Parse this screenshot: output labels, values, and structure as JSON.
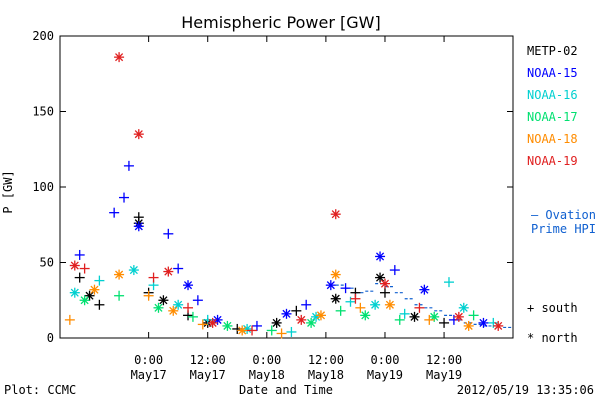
{
  "chart_data": {
    "type": "scatter",
    "title": "Hemispheric Power [GW]",
    "ylabel": "P [GW]",
    "xlabel": "Date and Time",
    "ylim": [
      0,
      200
    ],
    "yticks": [
      0,
      50,
      100,
      150,
      200
    ],
    "xlim_hours": [
      -18,
      74
    ],
    "xticks": [
      {
        "hours": 0,
        "time": "0:00",
        "date": "May17"
      },
      {
        "hours": 12,
        "time": "12:00",
        "date": "May17"
      },
      {
        "hours": 24,
        "time": "0:00",
        "date": "May18"
      },
      {
        "hours": 36,
        "time": "12:00",
        "date": "May18"
      },
      {
        "hours": 48,
        "time": "0:00",
        "date": "May19"
      },
      {
        "hours": 60,
        "time": "12:00",
        "date": "May19"
      }
    ],
    "marker_legend": [
      {
        "symbol": "+",
        "label": "south"
      },
      {
        "symbol": "*",
        "label": "north"
      }
    ],
    "series": [
      {
        "name": "METP-02",
        "color": "#000000",
        "points": [
          {
            "x": -14,
            "y": 40,
            "m": "+"
          },
          {
            "x": -12,
            "y": 28,
            "m": "*"
          },
          {
            "x": -10,
            "y": 22,
            "m": "+"
          },
          {
            "x": -2,
            "y": 80,
            "m": "+"
          },
          {
            "x": -2,
            "y": 76,
            "m": "*"
          },
          {
            "x": 0,
            "y": 30,
            "m": "+"
          },
          {
            "x": 3,
            "y": 25,
            "m": "*"
          },
          {
            "x": 8,
            "y": 15,
            "m": "+"
          },
          {
            "x": 12,
            "y": 10,
            "m": "*"
          },
          {
            "x": 18,
            "y": 6,
            "m": "+"
          },
          {
            "x": 26,
            "y": 10,
            "m": "*"
          },
          {
            "x": 30,
            "y": 18,
            "m": "+"
          },
          {
            "x": 38,
            "y": 26,
            "m": "*"
          },
          {
            "x": 42,
            "y": 30,
            "m": "+"
          },
          {
            "x": 47,
            "y": 40,
            "m": "*"
          },
          {
            "x": 48,
            "y": 30,
            "m": "+"
          },
          {
            "x": 54,
            "y": 14,
            "m": "*"
          },
          {
            "x": 60,
            "y": 10,
            "m": "+"
          }
        ]
      },
      {
        "name": "NOAA-15",
        "color": "#0000ff",
        "points": [
          {
            "x": -14,
            "y": 55,
            "m": "+"
          },
          {
            "x": -7,
            "y": 83,
            "m": "+"
          },
          {
            "x": -5,
            "y": 93,
            "m": "+"
          },
          {
            "x": -4,
            "y": 114,
            "m": "+"
          },
          {
            "x": -2,
            "y": 74,
            "m": "*"
          },
          {
            "x": 4,
            "y": 69,
            "m": "+"
          },
          {
            "x": 6,
            "y": 46,
            "m": "+"
          },
          {
            "x": 8,
            "y": 35,
            "m": "*"
          },
          {
            "x": 10,
            "y": 25,
            "m": "+"
          },
          {
            "x": 14,
            "y": 12,
            "m": "*"
          },
          {
            "x": 22,
            "y": 8,
            "m": "+"
          },
          {
            "x": 28,
            "y": 16,
            "m": "*"
          },
          {
            "x": 32,
            "y": 22,
            "m": "+"
          },
          {
            "x": 37,
            "y": 35,
            "m": "*"
          },
          {
            "x": 40,
            "y": 33,
            "m": "+"
          },
          {
            "x": 47,
            "y": 54,
            "m": "*"
          },
          {
            "x": 50,
            "y": 45,
            "m": "+"
          },
          {
            "x": 56,
            "y": 32,
            "m": "*"
          },
          {
            "x": 62,
            "y": 12,
            "m": "+"
          },
          {
            "x": 68,
            "y": 10,
            "m": "*"
          }
        ]
      },
      {
        "name": "NOAA-16",
        "color": "#00d0d0",
        "points": [
          {
            "x": -15,
            "y": 30,
            "m": "*"
          },
          {
            "x": -10,
            "y": 38,
            "m": "+"
          },
          {
            "x": -3,
            "y": 45,
            "m": "*"
          },
          {
            "x": 1,
            "y": 35,
            "m": "+"
          },
          {
            "x": 6,
            "y": 22,
            "m": "*"
          },
          {
            "x": 12,
            "y": 12,
            "m": "+"
          },
          {
            "x": 20,
            "y": 6,
            "m": "*"
          },
          {
            "x": 29,
            "y": 4,
            "m": "+"
          },
          {
            "x": 34,
            "y": 14,
            "m": "*"
          },
          {
            "x": 41,
            "y": 24,
            "m": "+"
          },
          {
            "x": 46,
            "y": 22,
            "m": "*"
          },
          {
            "x": 52,
            "y": 16,
            "m": "+"
          },
          {
            "x": 61,
            "y": 37,
            "m": "+"
          },
          {
            "x": 64,
            "y": 20,
            "m": "*"
          },
          {
            "x": 70,
            "y": 10,
            "m": "+"
          }
        ]
      },
      {
        "name": "NOAA-17",
        "color": "#00e070",
        "points": [
          {
            "x": -13,
            "y": 25,
            "m": "*"
          },
          {
            "x": -6,
            "y": 28,
            "m": "+"
          },
          {
            "x": 2,
            "y": 20,
            "m": "*"
          },
          {
            "x": 9,
            "y": 14,
            "m": "+"
          },
          {
            "x": 16,
            "y": 8,
            "m": "*"
          },
          {
            "x": 25,
            "y": 5,
            "m": "+"
          },
          {
            "x": 33,
            "y": 10,
            "m": "*"
          },
          {
            "x": 39,
            "y": 18,
            "m": "+"
          },
          {
            "x": 44,
            "y": 15,
            "m": "*"
          },
          {
            "x": 51,
            "y": 12,
            "m": "+"
          },
          {
            "x": 58,
            "y": 14,
            "m": "*"
          },
          {
            "x": 66,
            "y": 15,
            "m": "+"
          }
        ]
      },
      {
        "name": "NOAA-18",
        "color": "#ff8c00",
        "points": [
          {
            "x": -16,
            "y": 12,
            "m": "+"
          },
          {
            "x": -11,
            "y": 32,
            "m": "*"
          },
          {
            "x": -6,
            "y": 42,
            "m": "*"
          },
          {
            "x": 0,
            "y": 28,
            "m": "+"
          },
          {
            "x": 5,
            "y": 18,
            "m": "*"
          },
          {
            "x": 11,
            "y": 9,
            "m": "+"
          },
          {
            "x": 19,
            "y": 5,
            "m": "*"
          },
          {
            "x": 27,
            "y": 3,
            "m": "+"
          },
          {
            "x": 35,
            "y": 15,
            "m": "*"
          },
          {
            "x": 38,
            "y": 42,
            "m": "*"
          },
          {
            "x": 43,
            "y": 20,
            "m": "+"
          },
          {
            "x": 49,
            "y": 22,
            "m": "*"
          },
          {
            "x": 57,
            "y": 12,
            "m": "+"
          },
          {
            "x": 65,
            "y": 8,
            "m": "*"
          }
        ]
      },
      {
        "name": "NOAA-19",
        "color": "#e02020",
        "points": [
          {
            "x": -15,
            "y": 48,
            "m": "*"
          },
          {
            "x": -13,
            "y": 46,
            "m": "+"
          },
          {
            "x": -6,
            "y": 186,
            "m": "*"
          },
          {
            "x": -2,
            "y": 135,
            "m": "*"
          },
          {
            "x": 1,
            "y": 40,
            "m": "+"
          },
          {
            "x": 4,
            "y": 44,
            "m": "*"
          },
          {
            "x": 8,
            "y": 20,
            "m": "+"
          },
          {
            "x": 13,
            "y": 10,
            "m": "*"
          },
          {
            "x": 21,
            "y": 5,
            "m": "+"
          },
          {
            "x": 31,
            "y": 12,
            "m": "*"
          },
          {
            "x": 38,
            "y": 82,
            "m": "*"
          },
          {
            "x": 42,
            "y": 26,
            "m": "+"
          },
          {
            "x": 48,
            "y": 36,
            "m": "*"
          },
          {
            "x": 55,
            "y": 20,
            "m": "+"
          },
          {
            "x": 63,
            "y": 14,
            "m": "*"
          },
          {
            "x": 71,
            "y": 8,
            "m": "*"
          }
        ]
      }
    ],
    "ovation": {
      "label_line1": "— Ovation",
      "label_line2": "Prime HPI",
      "color": "#1060d0",
      "segments": [
        {
          "x0": 38,
          "x1": 40,
          "y": 35
        },
        {
          "x0": 40,
          "x1": 42,
          "y": 33
        },
        {
          "x0": 42,
          "x1": 44,
          "y": 30
        },
        {
          "x0": 44,
          "x1": 46,
          "y": 31
        },
        {
          "x0": 46,
          "x1": 48,
          "y": 36
        },
        {
          "x0": 48,
          "x1": 50,
          "y": 34
        },
        {
          "x0": 50,
          "x1": 52,
          "y": 30
        },
        {
          "x0": 52,
          "x1": 54,
          "y": 26
        },
        {
          "x0": 54,
          "x1": 56,
          "y": 22
        },
        {
          "x0": 56,
          "x1": 58,
          "y": 20
        },
        {
          "x0": 58,
          "x1": 60,
          "y": 18
        },
        {
          "x0": 60,
          "x1": 62,
          "y": 15
        },
        {
          "x0": 62,
          "x1": 64,
          "y": 12
        },
        {
          "x0": 64,
          "x1": 66,
          "y": 10
        },
        {
          "x0": 66,
          "x1": 68,
          "y": 9
        },
        {
          "x0": 68,
          "x1": 70,
          "y": 8
        },
        {
          "x0": 70,
          "x1": 72,
          "y": 8
        },
        {
          "x0": 72,
          "x1": 74,
          "y": 7
        }
      ]
    },
    "footer_left": "Plot: CCMC",
    "footer_right": "2012/05/19 13:35:06"
  }
}
